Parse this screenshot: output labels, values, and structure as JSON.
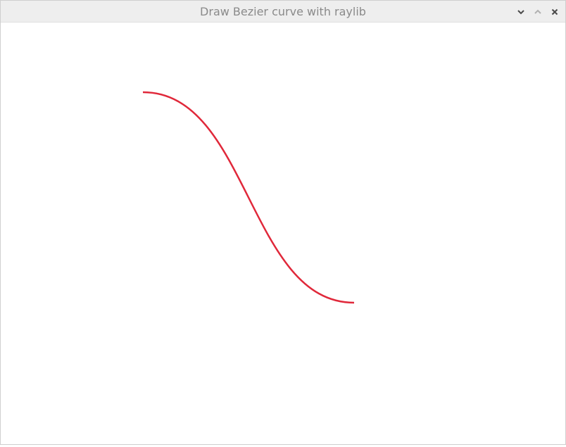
{
  "window": {
    "title": "Draw Bezier curve with raylib",
    "controls": {
      "minimize_icon": "chevron-down-icon",
      "maximize_icon": "chevron-up-icon",
      "close_icon": "close-icon"
    },
    "titlebar_color": "#eeeeee",
    "title_color": "#8a8a8a"
  },
  "canvas": {
    "background_color": "#ffffff",
    "curve": {
      "type": "bezier",
      "color": "#e0283a"
    }
  }
}
